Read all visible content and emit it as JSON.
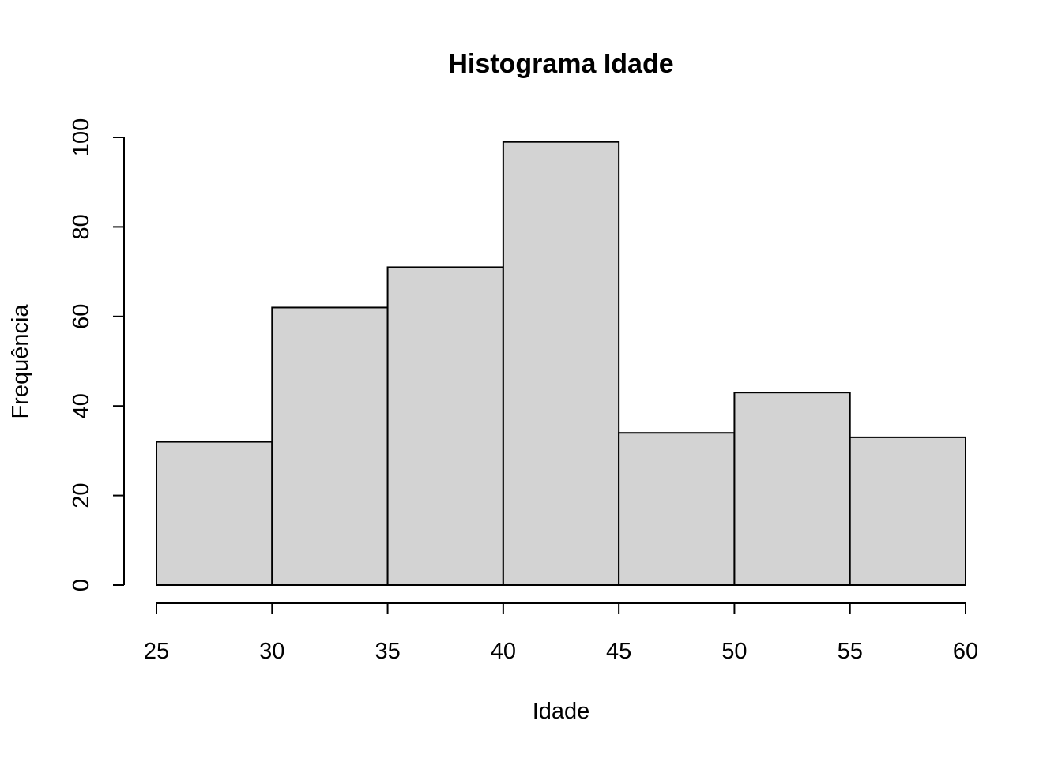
{
  "chart_data": {
    "type": "bar",
    "title": "Histograma Idade",
    "xlabel": "Idade",
    "ylabel": "Frequência",
    "bins": [
      {
        "from": 25,
        "to": 30,
        "value": 32
      },
      {
        "from": 30,
        "to": 35,
        "value": 62
      },
      {
        "from": 35,
        "to": 40,
        "value": 71
      },
      {
        "from": 40,
        "to": 45,
        "value": 99
      },
      {
        "from": 45,
        "to": 50,
        "value": 34
      },
      {
        "from": 50,
        "to": 55,
        "value": 43
      },
      {
        "from": 55,
        "to": 60,
        "value": 33
      }
    ],
    "x_ticks": [
      "25",
      "30",
      "35",
      "40",
      "45",
      "50",
      "55",
      "60"
    ],
    "y_ticks": [
      "0",
      "20",
      "40",
      "60",
      "80",
      "100"
    ],
    "xlim": [
      25,
      60
    ],
    "ylim": [
      0,
      100
    ],
    "grid": false,
    "bar_color": "#d3d3d3",
    "edge_color": "#000000"
  }
}
